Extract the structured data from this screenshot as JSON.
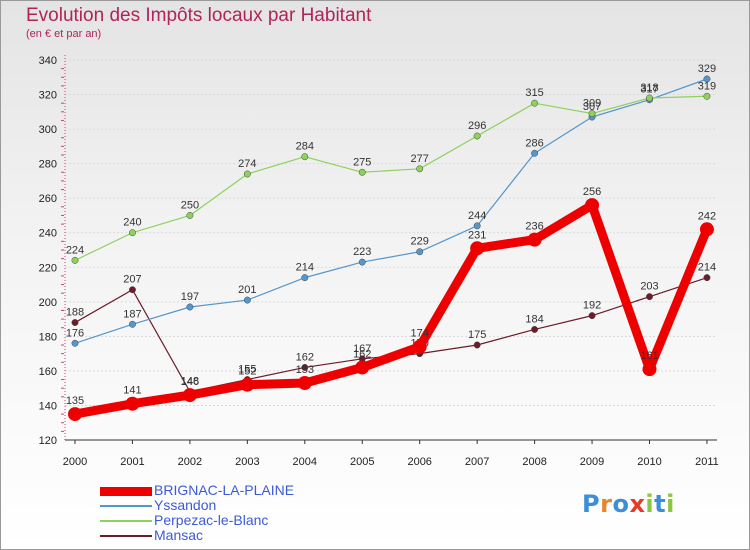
{
  "title": "Evolution des Impôts locaux par Habitant",
  "subtitle": "(en € et par an)",
  "logo": {
    "text": "Proxiti",
    "letters": [
      "P",
      "r",
      "o",
      "x",
      "i",
      "t",
      "i"
    ],
    "letter_colors": [
      "#3a8fd8",
      "#e8862a",
      "#3a8fd8",
      "#e83a2a",
      "#8cc63f",
      "#3a8fd8",
      "#8cc63f"
    ]
  },
  "chart_data": {
    "type": "line",
    "x": [
      "2000",
      "2001",
      "2002",
      "2003",
      "2004",
      "2005",
      "2006",
      "2007",
      "2008",
      "2009",
      "2010",
      "2011"
    ],
    "ylim": [
      120,
      340
    ],
    "yticks": [
      120,
      140,
      160,
      180,
      200,
      220,
      240,
      260,
      280,
      300,
      320,
      340
    ],
    "grid": "horizontal",
    "legend_position": "bottom-left",
    "series": [
      {
        "name": "BRIGNAC-LA-PLAINE",
        "color": "#ee0000",
        "values": [
          135,
          141,
          146,
          152,
          153,
          162,
          174,
          231,
          236,
          256,
          161,
          242
        ],
        "labels": [
          "135",
          "141",
          "146",
          "152",
          "153",
          "162",
          "174",
          "231",
          "236",
          "256",
          "161",
          "242"
        ]
      },
      {
        "name": "Yssandon",
        "color": "#5596cc",
        "values": [
          176,
          187,
          197,
          201,
          214,
          223,
          229,
          244,
          286,
          307,
          317,
          329
        ],
        "labels": [
          "176",
          "187",
          "197",
          "201",
          "214",
          "223",
          "229",
          "244",
          "286",
          "307",
          "317",
          "329"
        ]
      },
      {
        "name": "Perpezac-le-Blanc",
        "color": "#8ed15b",
        "values": [
          224,
          240,
          250,
          274,
          284,
          275,
          277,
          296,
          315,
          309,
          318,
          319
        ],
        "labels": [
          "224",
          "240",
          "250",
          "274",
          "284",
          "275",
          "277",
          "296",
          "315",
          "309",
          "318",
          "319"
        ]
      },
      {
        "name": "Mansac",
        "color": "#6b1d2a",
        "values": [
          188,
          207,
          148,
          155,
          162,
          167,
          170,
          175,
          184,
          192,
          203,
          214
        ],
        "labels": [
          "188",
          "207",
          "148",
          "155",
          "162",
          "167",
          "170",
          "175",
          "184",
          "192",
          "203",
          "214"
        ]
      }
    ]
  }
}
